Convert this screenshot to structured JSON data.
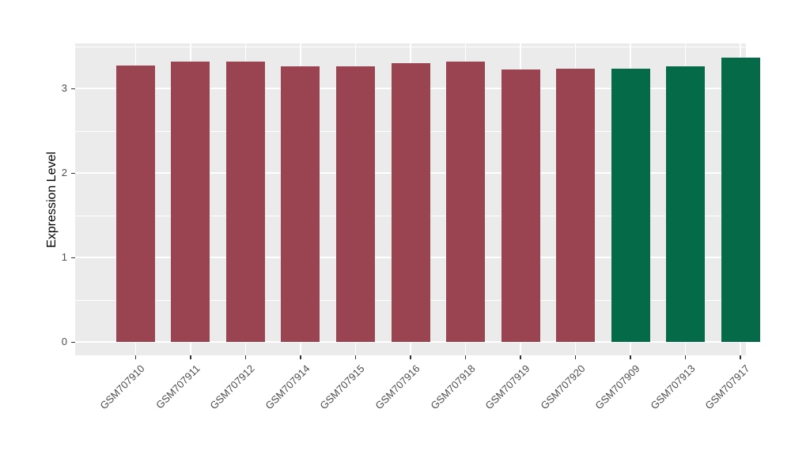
{
  "figure": {
    "background": "#FFFFFF",
    "panel_background": "#EBEBEB",
    "grid_color": "#FFFFFF",
    "tick_color": "#333333",
    "axis_text_color": "#4D4D4D",
    "axis_title_color": "#000000"
  },
  "chart_data": {
    "type": "bar",
    "title": "",
    "subtitle": "",
    "xlabel": "",
    "ylabel": "Expression Level",
    "categories": [
      "GSM707910",
      "GSM707911",
      "GSM707912",
      "GSM707914",
      "GSM707915",
      "GSM707916",
      "GSM707918",
      "GSM707919",
      "GSM707920",
      "GSM707909",
      "GSM707913",
      "GSM707917"
    ],
    "values": [
      3.27,
      3.32,
      3.32,
      3.26,
      3.26,
      3.3,
      3.32,
      3.22,
      3.23,
      3.23,
      3.26,
      3.36
    ],
    "bar_colors": [
      "#9A4451",
      "#9A4451",
      "#9A4451",
      "#9A4451",
      "#9A4451",
      "#9A4451",
      "#9A4451",
      "#9A4451",
      "#9A4451",
      "#046A47",
      "#046A47",
      "#046A47"
    ],
    "group_colors": {
      "group1": "#9A4451",
      "group2": "#046A47"
    },
    "yticks": [
      0,
      1,
      2,
      3
    ],
    "ytick_labels": [
      "0",
      "1",
      "2",
      "3"
    ],
    "minor_gridlines": [
      0.5,
      1.5,
      2.5,
      3.5
    ],
    "ylim": [
      -0.15,
      3.53
    ],
    "grid": "on",
    "legend_position": "none",
    "x_label_rotation_deg": 45
  }
}
